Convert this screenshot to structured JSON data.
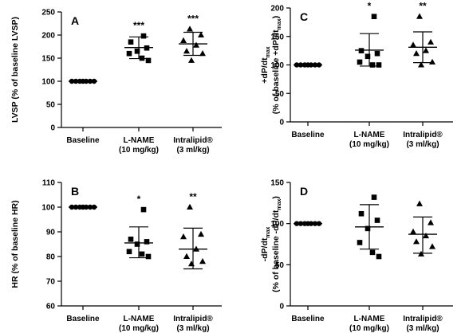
{
  "chart_data": [
    {
      "type": "scatter",
      "panel": "A",
      "ylabel": "LVSP (% of baseline LVSP)",
      "ylabel_parts": [],
      "ylim": [
        0,
        250
      ],
      "yticks": [
        "0",
        "50",
        "100",
        "150",
        "200",
        "250"
      ],
      "categories": [
        {
          "lines": [
            "Baseline"
          ]
        },
        {
          "lines": [
            "L-NAME",
            "(10 mg/kg)"
          ]
        },
        {
          "lines": [
            "Intralipid®",
            "(3 ml/kg)"
          ]
        }
      ],
      "significance": [
        "",
        "***",
        "***"
      ],
      "series": [
        {
          "marker": "circle",
          "values": [
            100,
            100,
            100,
            100,
            100,
            100,
            100
          ],
          "mean": 100,
          "sd_low": 100,
          "sd_high": 100
        },
        {
          "marker": "square",
          "values": [
            198,
            185,
            172,
            165,
            160,
            150,
            145
          ],
          "mean": 173,
          "sd_low": 149,
          "sd_high": 196
        },
        {
          "marker": "triangle",
          "values": [
            213,
            200,
            188,
            178,
            165,
            160,
            145
          ],
          "mean": 181,
          "sd_low": 156,
          "sd_high": 206
        }
      ]
    },
    {
      "type": "scatter",
      "panel": "B",
      "ylabel": "HR (% of baseline HR)",
      "ylabel_parts": [],
      "ylim": [
        60,
        110
      ],
      "yticks": [
        "60",
        "70",
        "80",
        "90",
        "100",
        "110"
      ],
      "categories": [
        {
          "lines": [
            "Baseline"
          ]
        },
        {
          "lines": [
            "L-NAME",
            "(10 mg/kg)"
          ]
        },
        {
          "lines": [
            "Intralipid®",
            "(3 ml/kg)"
          ]
        }
      ],
      "significance": [
        "",
        "*",
        "**"
      ],
      "series": [
        {
          "marker": "circle",
          "values": [
            100,
            100,
            100,
            100,
            100,
            100,
            100
          ],
          "mean": 100,
          "sd_low": 100,
          "sd_high": 100
        },
        {
          "marker": "square",
          "values": [
            99,
            87,
            86,
            85,
            82,
            81,
            80
          ],
          "mean": 85.5,
          "sd_low": 79.5,
          "sd_high": 92
        },
        {
          "marker": "triangle",
          "values": [
            100,
            89,
            88,
            83,
            80,
            78,
            77
          ],
          "mean": 83,
          "sd_low": 75,
          "sd_high": 91.5
        }
      ]
    },
    {
      "type": "scatter",
      "panel": "C",
      "ylabel": "",
      "ylabel_parts": [
        {
          "text": "+dP/dt",
          "sub": "max"
        },
        {
          "text": "(% of baseline +dP/dt",
          "sub": "max",
          "after": ")"
        }
      ],
      "ylim": [
        0,
        200
      ],
      "yticks": [
        "0",
        "50",
        "100",
        "150",
        "200"
      ],
      "categories": [
        {
          "lines": [
            "Baseline"
          ]
        },
        {
          "lines": [
            "L-NAME",
            "(10 mg/kg)"
          ]
        },
        {
          "lines": [
            "Intralipid®",
            "(3 ml/kg)"
          ]
        }
      ],
      "significance": [
        "",
        "*",
        "**"
      ],
      "series": [
        {
          "marker": "circle",
          "values": [
            100,
            100,
            100,
            100,
            100,
            100,
            100
          ],
          "mean": 100,
          "sd_low": 100,
          "sd_high": 100
        },
        {
          "marker": "square",
          "values": [
            185,
            125,
            120,
            115,
            105,
            100,
            100
          ],
          "mean": 126,
          "sd_low": 98,
          "sd_high": 155
        },
        {
          "marker": "triangle",
          "values": [
            185,
            140,
            135,
            125,
            120,
            105,
            100
          ],
          "mean": 131,
          "sd_low": 104,
          "sd_high": 158
        }
      ]
    },
    {
      "type": "scatter",
      "panel": "D",
      "ylabel": "",
      "ylabel_parts": [
        {
          "text": "-dP/dt",
          "sub": "max"
        },
        {
          "text": "(% of baseline -dP/dt",
          "sub": "max",
          "after": ")"
        }
      ],
      "ylim": [
        0,
        150
      ],
      "yticks": [
        "0",
        "50",
        "100",
        "150"
      ],
      "categories": [
        {
          "lines": [
            "Baseline"
          ]
        },
        {
          "lines": [
            "L-NAME",
            "(10 mg/kg)"
          ]
        },
        {
          "lines": [
            "Intralipid®",
            "(3 ml/kg)"
          ]
        }
      ],
      "significance": [
        "",
        "",
        ""
      ],
      "series": [
        {
          "marker": "circle",
          "values": [
            100,
            100,
            100,
            100,
            100,
            100,
            100
          ],
          "mean": 100,
          "sd_low": 100,
          "sd_high": 100
        },
        {
          "marker": "square",
          "values": [
            132,
            112,
            104,
            94,
            77,
            65,
            60
          ],
          "mean": 96,
          "sd_low": 69,
          "sd_high": 123
        },
        {
          "marker": "triangle",
          "values": [
            124,
            101,
            90,
            85,
            78,
            72,
            63
          ],
          "mean": 87,
          "sd_low": 64,
          "sd_high": 108
        }
      ]
    }
  ]
}
